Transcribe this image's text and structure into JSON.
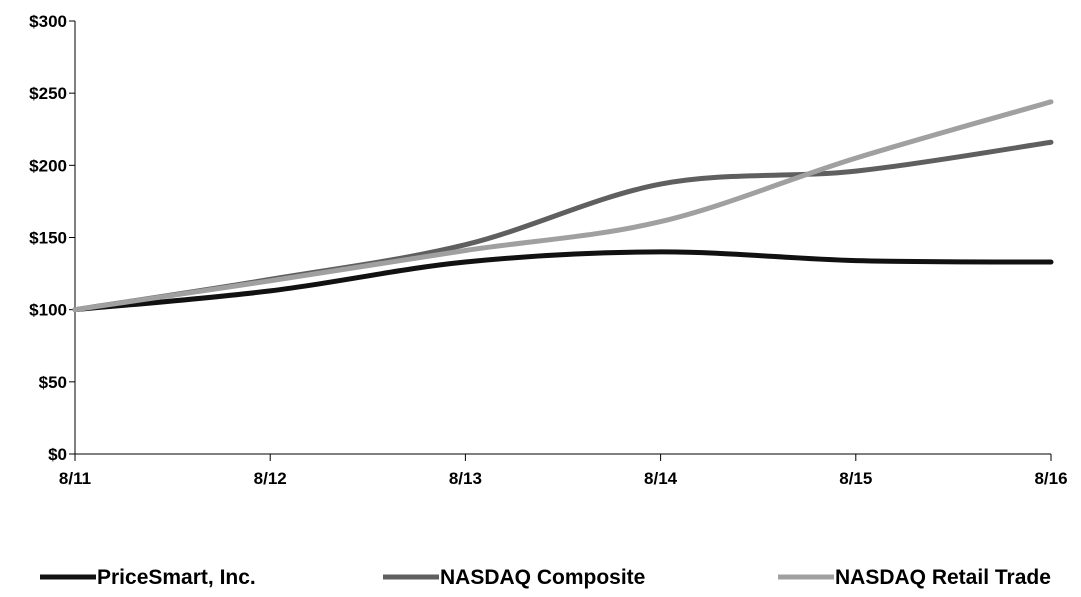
{
  "chart_data": {
    "type": "line",
    "title": "",
    "xlabel": "",
    "ylabel": "",
    "categories": [
      "8/11",
      "8/12",
      "8/13",
      "8/14",
      "8/15",
      "8/16"
    ],
    "ylim": [
      0,
      300
    ],
    "yticks": [
      0,
      50,
      100,
      150,
      200,
      250,
      300
    ],
    "ytick_labels": [
      "$0",
      "$50",
      "$100",
      "$150",
      "$200",
      "$250",
      "$300"
    ],
    "grid": false,
    "legend_position": "bottom",
    "series": [
      {
        "name": "PriceSmart, Inc.",
        "values": [
          100,
          113,
          133,
          140,
          134,
          133
        ],
        "color": "#111111"
      },
      {
        "name": "NASDAQ Composite",
        "values": [
          100,
          121,
          145,
          187,
          196,
          216
        ],
        "color": "#5f5f5f"
      },
      {
        "name": "NASDAQ Retail Trade",
        "values": [
          100,
          120,
          141,
          161,
          205,
          244
        ],
        "color": "#a0a0a0"
      }
    ]
  }
}
